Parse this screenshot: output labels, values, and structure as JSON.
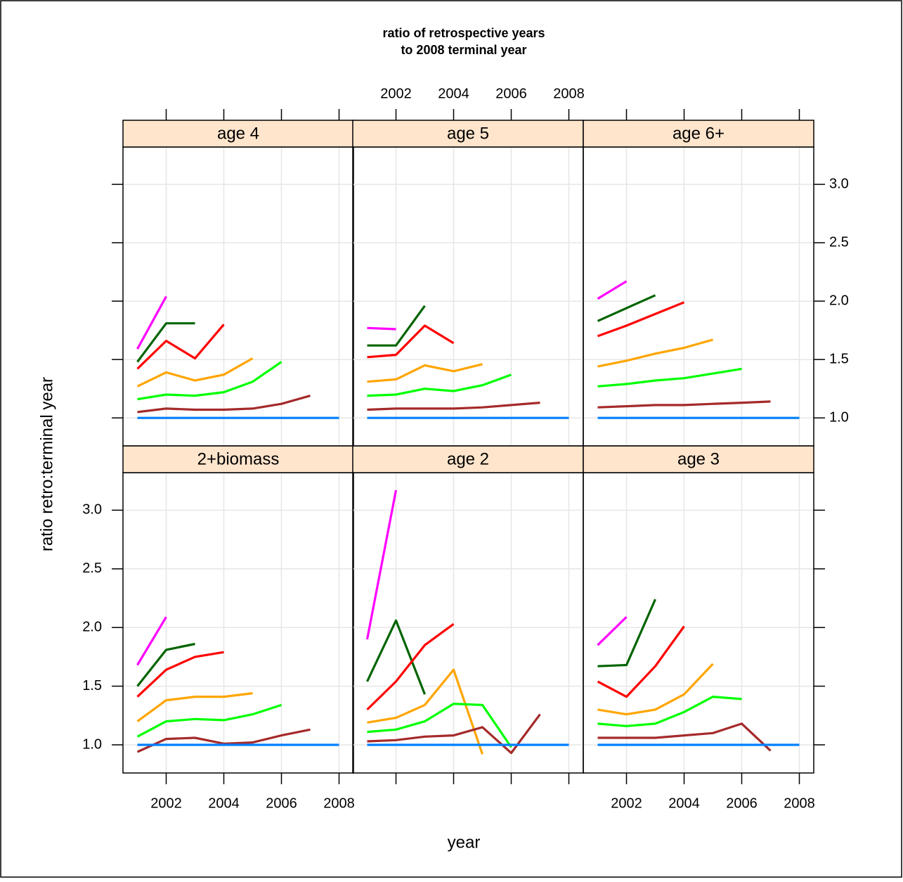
{
  "title": [
    "ratio of retrospective years",
    "to 2008 terminal year"
  ],
  "x_label": "year",
  "y_label": "ratio retro:terminal year",
  "chart_data": [
    {
      "type": "line",
      "title": "age 4",
      "x": [
        2001,
        2002,
        2003,
        2004,
        2005,
        2006,
        2007,
        2008
      ],
      "xlim": [
        2000.5,
        2008.5
      ],
      "ylim": [
        0.76,
        3.32
      ],
      "grid": true,
      "xticks": [
        2002,
        2004,
        2006,
        2008
      ],
      "yticks": [
        {
          "value": 1,
          "label": "1.0"
        },
        1.5,
        {
          "value": 2,
          "label": "2.0"
        },
        2.5,
        {
          "value": 3,
          "label": "3.0"
        }
      ],
      "series": [
        {
          "color": "#ff00ff",
          "values": [
            1.59,
            2.04,
            null,
            null,
            null,
            null,
            null,
            null
          ]
        },
        {
          "color": "#006400",
          "values": [
            1.48,
            1.81,
            1.81,
            null,
            null,
            null,
            null,
            null
          ]
        },
        {
          "color": "#ff0000",
          "values": [
            1.42,
            1.66,
            1.51,
            1.8,
            null,
            null,
            null,
            null
          ]
        },
        {
          "color": "#ffa500",
          "values": [
            1.27,
            1.39,
            1.32,
            1.37,
            1.51,
            null,
            null,
            null
          ]
        },
        {
          "color": "#00ff00",
          "values": [
            1.16,
            1.2,
            1.19,
            1.22,
            1.31,
            1.48,
            null,
            null
          ]
        },
        {
          "color": "#a52a2a",
          "values": [
            1.05,
            1.08,
            1.07,
            1.07,
            1.08,
            1.12,
            1.19,
            null
          ]
        },
        {
          "color": "#0080ff",
          "values": [
            1,
            1,
            1,
            1,
            1,
            1,
            1,
            1
          ]
        }
      ]
    },
    {
      "type": "line",
      "title": "age 5",
      "x": [
        2001,
        2002,
        2003,
        2004,
        2005,
        2006,
        2007,
        2008
      ],
      "xlim": [
        2000.5,
        2008.5
      ],
      "ylim": [
        0.76,
        3.32
      ],
      "grid": true,
      "xticks": [
        2002,
        2004,
        2006,
        2008
      ],
      "yticks": [
        {
          "value": 1,
          "label": "1.0"
        },
        1.5,
        {
          "value": 2,
          "label": "2.0"
        },
        2.5,
        {
          "value": 3,
          "label": "3.0"
        }
      ],
      "series": [
        {
          "color": "#ff00ff",
          "values": [
            1.77,
            1.76,
            null,
            null,
            null,
            null,
            null,
            null
          ]
        },
        {
          "color": "#006400",
          "values": [
            1.62,
            1.62,
            1.96,
            null,
            null,
            null,
            null,
            null
          ]
        },
        {
          "color": "#ff0000",
          "values": [
            1.52,
            1.54,
            1.79,
            1.64,
            null,
            null,
            null,
            null
          ]
        },
        {
          "color": "#ffa500",
          "values": [
            1.31,
            1.33,
            1.45,
            1.4,
            1.46,
            null,
            null,
            null
          ]
        },
        {
          "color": "#00ff00",
          "values": [
            1.19,
            1.2,
            1.25,
            1.23,
            1.28,
            1.37,
            null,
            null
          ]
        },
        {
          "color": "#a52a2a",
          "values": [
            1.07,
            1.08,
            1.08,
            1.08,
            1.09,
            1.11,
            1.13,
            null
          ]
        },
        {
          "color": "#0080ff",
          "values": [
            1,
            1,
            1,
            1,
            1,
            1,
            1,
            1
          ]
        }
      ]
    },
    {
      "type": "line",
      "title": "age 6+",
      "x": [
        2001,
        2002,
        2003,
        2004,
        2005,
        2006,
        2007,
        2008
      ],
      "xlim": [
        2000.5,
        2008.5
      ],
      "ylim": [
        0.76,
        3.32
      ],
      "grid": true,
      "xticks": [
        2002,
        2004,
        2006,
        2008
      ],
      "yticks": [
        {
          "value": 1,
          "label": "1.0"
        },
        1.5,
        {
          "value": 2,
          "label": "2.0"
        },
        2.5,
        {
          "value": 3,
          "label": "3.0"
        }
      ],
      "series": [
        {
          "color": "#ff00ff",
          "values": [
            2.02,
            2.17,
            null,
            null,
            null,
            null,
            null,
            null
          ]
        },
        {
          "color": "#006400",
          "values": [
            1.83,
            1.94,
            2.05,
            null,
            null,
            null,
            null,
            null
          ]
        },
        {
          "color": "#ff0000",
          "values": [
            1.7,
            1.79,
            1.89,
            1.99,
            null,
            null,
            null,
            null
          ]
        },
        {
          "color": "#ffa500",
          "values": [
            1.44,
            1.49,
            1.55,
            1.6,
            1.67,
            null,
            null,
            null
          ]
        },
        {
          "color": "#00ff00",
          "values": [
            1.27,
            1.29,
            1.32,
            1.34,
            1.38,
            1.42,
            null,
            null
          ]
        },
        {
          "color": "#a52a2a",
          "values": [
            1.09,
            1.1,
            1.11,
            1.11,
            1.12,
            1.13,
            1.14,
            null
          ]
        },
        {
          "color": "#0080ff",
          "values": [
            1,
            1,
            1,
            1,
            1,
            1,
            1,
            1
          ]
        }
      ]
    },
    {
      "type": "line",
      "title": "2+biomass",
      "x": [
        2001,
        2002,
        2003,
        2004,
        2005,
        2006,
        2007,
        2008
      ],
      "xlim": [
        2000.5,
        2008.5
      ],
      "ylim": [
        0.76,
        3.32
      ],
      "grid": true,
      "xticks": [
        2002,
        2004,
        2006,
        2008
      ],
      "yticks": [
        {
          "value": 1,
          "label": "1.0"
        },
        1.5,
        {
          "value": 2,
          "label": "2.0"
        },
        2.5,
        {
          "value": 3,
          "label": "3.0"
        }
      ],
      "series": [
        {
          "color": "#ff00ff",
          "values": [
            1.68,
            2.09,
            null,
            null,
            null,
            null,
            null,
            null
          ]
        },
        {
          "color": "#006400",
          "values": [
            1.5,
            1.81,
            1.86,
            null,
            null,
            null,
            null,
            null
          ]
        },
        {
          "color": "#ff0000",
          "values": [
            1.41,
            1.64,
            1.75,
            1.79,
            null,
            null,
            null,
            null
          ]
        },
        {
          "color": "#ffa500",
          "values": [
            1.2,
            1.38,
            1.41,
            1.41,
            1.44,
            null,
            null,
            null
          ]
        },
        {
          "color": "#00ff00",
          "values": [
            1.07,
            1.2,
            1.22,
            1.21,
            1.26,
            1.34,
            null,
            null
          ]
        },
        {
          "color": "#a52a2a",
          "values": [
            0.94,
            1.05,
            1.06,
            1.01,
            1.02,
            1.08,
            1.13,
            null
          ]
        },
        {
          "color": "#0080ff",
          "values": [
            1,
            1,
            1,
            1,
            1,
            1,
            1,
            1
          ]
        }
      ]
    },
    {
      "type": "line",
      "title": "age 2",
      "x": [
        2001,
        2002,
        2003,
        2004,
        2005,
        2006,
        2007,
        2008
      ],
      "xlim": [
        2000.5,
        2008.5
      ],
      "ylim": [
        0.76,
        3.32
      ],
      "grid": true,
      "xticks": [
        2002,
        2004,
        2006,
        2008
      ],
      "yticks": [
        {
          "value": 1,
          "label": "1.0"
        },
        1.5,
        {
          "value": 2,
          "label": "2.0"
        },
        2.5,
        {
          "value": 3,
          "label": "3.0"
        }
      ],
      "series": [
        {
          "color": "#ff00ff",
          "values": [
            1.9,
            3.17,
            null,
            null,
            null,
            null,
            null,
            null
          ]
        },
        {
          "color": "#006400",
          "values": [
            1.54,
            2.06,
            1.43,
            null,
            null,
            null,
            null,
            null
          ]
        },
        {
          "color": "#ff0000",
          "values": [
            1.3,
            1.54,
            1.85,
            2.03,
            null,
            null,
            null,
            null
          ]
        },
        {
          "color": "#ffa500",
          "values": [
            1.19,
            1.23,
            1.34,
            1.64,
            0.92,
            null,
            null,
            null
          ]
        },
        {
          "color": "#00ff00",
          "values": [
            1.11,
            1.13,
            1.2,
            1.35,
            1.34,
            0.98,
            null,
            null
          ]
        },
        {
          "color": "#a52a2a",
          "values": [
            1.03,
            1.04,
            1.07,
            1.08,
            1.15,
            0.93,
            1.26,
            null
          ]
        },
        {
          "color": "#0080ff",
          "values": [
            1,
            1,
            1,
            1,
            1,
            1,
            1,
            1
          ]
        }
      ]
    },
    {
      "type": "line",
      "title": "age 3",
      "x": [
        2001,
        2002,
        2003,
        2004,
        2005,
        2006,
        2007,
        2008
      ],
      "xlim": [
        2000.5,
        2008.5
      ],
      "ylim": [
        0.76,
        3.32
      ],
      "grid": true,
      "xticks": [
        2002,
        2004,
        2006,
        2008
      ],
      "yticks": [
        {
          "value": 1,
          "label": "1.0"
        },
        1.5,
        {
          "value": 2,
          "label": "2.0"
        },
        2.5,
        {
          "value": 3,
          "label": "3.0"
        }
      ],
      "series": [
        {
          "color": "#ff00ff",
          "values": [
            1.85,
            2.09,
            null,
            null,
            null,
            null,
            null,
            null
          ]
        },
        {
          "color": "#006400",
          "values": [
            1.67,
            1.68,
            2.24,
            null,
            null,
            null,
            null,
            null
          ]
        },
        {
          "color": "#ff0000",
          "values": [
            1.54,
            1.41,
            1.67,
            2.01,
            null,
            null,
            null,
            null
          ]
        },
        {
          "color": "#ffa500",
          "values": [
            1.3,
            1.26,
            1.3,
            1.43,
            1.69,
            null,
            null,
            null
          ]
        },
        {
          "color": "#00ff00",
          "values": [
            1.18,
            1.16,
            1.18,
            1.28,
            1.41,
            1.39,
            null,
            null
          ]
        },
        {
          "color": "#a52a2a",
          "values": [
            1.06,
            1.06,
            1.06,
            1.08,
            1.1,
            1.18,
            0.95,
            null
          ]
        },
        {
          "color": "#0080ff",
          "values": [
            1,
            1,
            1,
            1,
            1,
            1,
            1,
            1
          ]
        }
      ]
    }
  ]
}
